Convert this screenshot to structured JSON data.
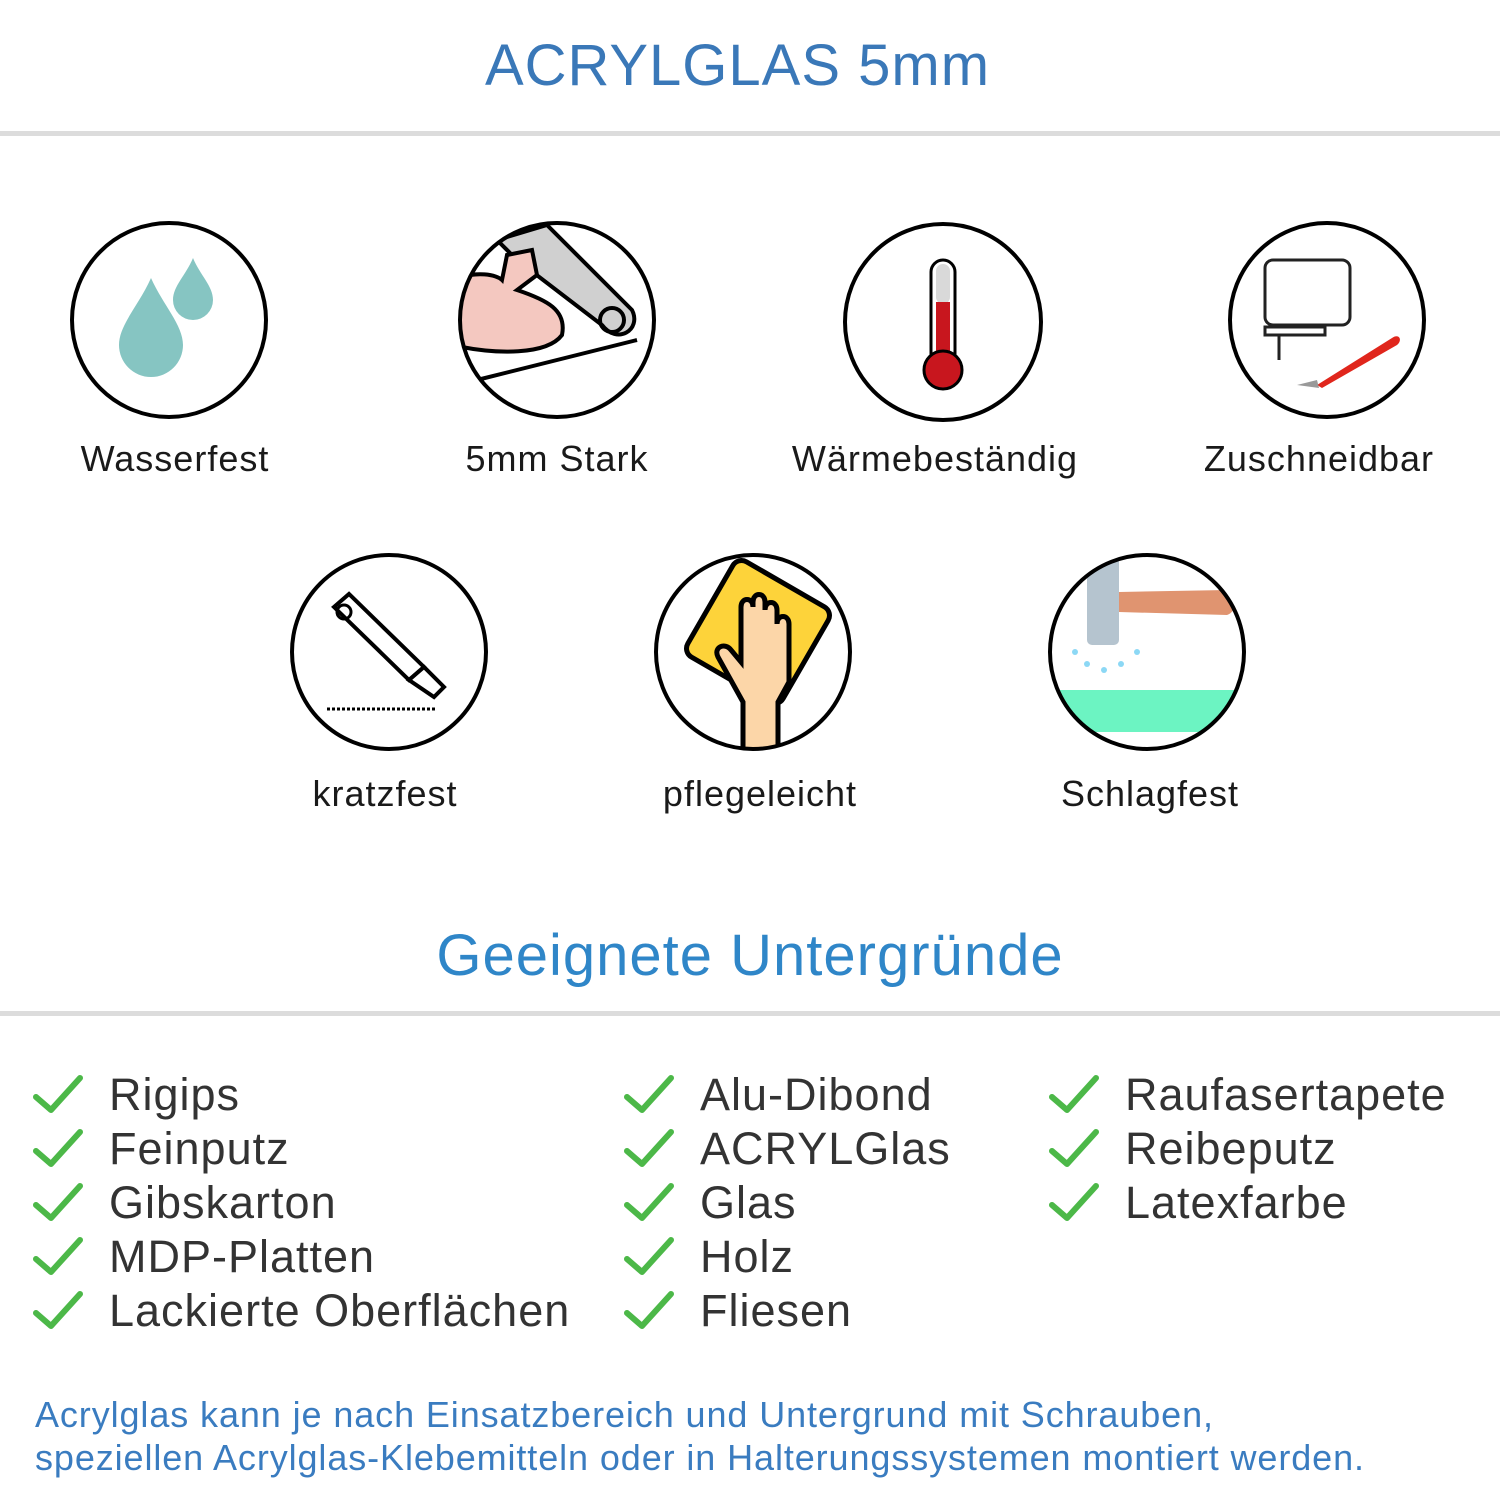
{
  "header": {
    "title": "ACRYLGLAS 5mm"
  },
  "features": [
    {
      "label": "Wasserfest",
      "icon": "water-drops-icon"
    },
    {
      "label": "5mm Stark",
      "icon": "strong-arm-icon"
    },
    {
      "label": "Wärmebeständig",
      "icon": "thermometer-icon"
    },
    {
      "label": "Zuschneidbar",
      "icon": "jigsaw-cutter-icon"
    },
    {
      "label": "kratzfest",
      "icon": "box-cutter-icon"
    },
    {
      "label": "pflegeleicht",
      "icon": "cleaning-cloth-hand-icon"
    },
    {
      "label": "Schlagfest",
      "icon": "hammer-impact-icon"
    }
  ],
  "surfaces": {
    "title": "Geeignete Untergründe",
    "check_color": "#4cb848",
    "columns": [
      [
        "Rigips",
        "Feinputz",
        "Gibskarton",
        "MDP-Platten",
        "Lackierte Oberflächen"
      ],
      [
        "Alu-Dibond",
        "ACRYLGlas",
        "Glas",
        "Holz",
        "Fliesen"
      ],
      [
        "Raufasertapete",
        "Reibeputz",
        "Latexfarbe"
      ]
    ]
  },
  "footer": {
    "line1": "Acrylglas kann je nach Einsatzbereich und Untergrund mit Schrauben,",
    "line2": "speziellen Acrylglas-Klebemitteln oder in Halterungssystemen montiert werden."
  },
  "colors": {
    "title": "#3a78b8",
    "subtitle": "#2f86c8",
    "footer": "#3a7cc0"
  }
}
